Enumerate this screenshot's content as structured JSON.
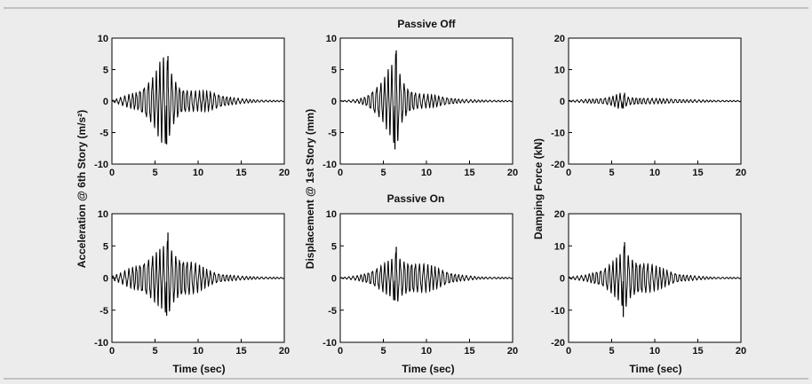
{
  "figure": {
    "titles": [
      "Passive Off",
      "Passive On"
    ],
    "ylabels": [
      "Acceleration @ 6th Story (m/s²)",
      "Displacement @ 1st Story (mm)",
      "Damping Force (kN)"
    ],
    "xlabel": "Time (sec)",
    "colors": {
      "background": "#ececec",
      "axes": "#ffffff",
      "signal": "#000000"
    }
  },
  "chart_data": [
    {
      "type": "line",
      "panel": "Passive Off / acceleration",
      "x_range": [
        0,
        20
      ],
      "ylim": [
        -10,
        10
      ],
      "xticks": [
        0,
        5,
        10,
        15,
        20
      ],
      "yticks": [
        -10,
        -5,
        0,
        5,
        10
      ],
      "envelope": [
        [
          0,
          0.1
        ],
        [
          1,
          0.6
        ],
        [
          2,
          1.1
        ],
        [
          3,
          1.6
        ],
        [
          4,
          3
        ],
        [
          5,
          4.5
        ],
        [
          5.5,
          6.2
        ],
        [
          6,
          7
        ],
        [
          6.5,
          6.5
        ],
        [
          7,
          4.3
        ],
        [
          8,
          2.2
        ],
        [
          9,
          1.8
        ],
        [
          10,
          1.6
        ],
        [
          11,
          1.7
        ],
        [
          12,
          1.4
        ],
        [
          13,
          0.9
        ],
        [
          14,
          0.6
        ],
        [
          15,
          0.4
        ],
        [
          17,
          0.2
        ],
        [
          20,
          0.1
        ]
      ],
      "peak": [
        7.1,
        -6.8
      ]
    },
    {
      "type": "line",
      "panel": "Passive Off / displacement",
      "x_range": [
        0,
        20
      ],
      "ylim": [
        -10,
        10
      ],
      "xticks": [
        0,
        5,
        10,
        15,
        20
      ],
      "yticks": [
        -10,
        -5,
        0,
        5,
        10
      ],
      "envelope": [
        [
          0,
          0.05
        ],
        [
          2,
          0.3
        ],
        [
          3,
          0.8
        ],
        [
          4,
          2.2
        ],
        [
          5,
          3.5
        ],
        [
          5.5,
          5
        ],
        [
          6,
          5.8
        ],
        [
          6.5,
          8
        ],
        [
          7,
          4
        ],
        [
          8,
          2
        ],
        [
          9,
          1.3
        ],
        [
          10,
          1.1
        ],
        [
          11,
          1
        ],
        [
          12,
          0.7
        ],
        [
          13,
          0.5
        ],
        [
          14,
          0.3
        ],
        [
          16,
          0.2
        ],
        [
          20,
          0.1
        ]
      ],
      "peak": [
        8,
        -7.6
      ]
    },
    {
      "type": "line",
      "panel": "Passive Off / damping force",
      "x_range": [
        0,
        20
      ],
      "ylim": [
        -20,
        20
      ],
      "xticks": [
        0,
        5,
        10,
        15,
        20
      ],
      "yticks": [
        -20,
        -10,
        0,
        10,
        20
      ],
      "envelope": [
        [
          0,
          0.2
        ],
        [
          2,
          0.6
        ],
        [
          4,
          1
        ],
        [
          5,
          1.5
        ],
        [
          6,
          2.5
        ],
        [
          6.5,
          1.8
        ],
        [
          7,
          1.3
        ],
        [
          9,
          1
        ],
        [
          11,
          0.8
        ],
        [
          14,
          0.5
        ],
        [
          17,
          0.3
        ],
        [
          20,
          0.2
        ]
      ],
      "peak": [
        2.5,
        -2.2
      ]
    },
    {
      "type": "line",
      "panel": "Passive On / acceleration",
      "x_range": [
        0,
        20
      ],
      "ylim": [
        -10,
        10
      ],
      "xticks": [
        0,
        5,
        10,
        15,
        20
      ],
      "yticks": [
        -10,
        -5,
        0,
        5,
        10
      ],
      "envelope": [
        [
          0,
          0.3
        ],
        [
          1,
          0.8
        ],
        [
          2,
          1.5
        ],
        [
          3,
          2.2
        ],
        [
          4,
          3
        ],
        [
          5,
          4
        ],
        [
          6,
          5
        ],
        [
          6.5,
          6
        ],
        [
          7,
          4.3
        ],
        [
          8,
          3.2
        ],
        [
          9,
          2.8
        ],
        [
          10,
          2.2
        ],
        [
          11,
          1.4
        ],
        [
          12,
          0.9
        ],
        [
          13,
          0.6
        ],
        [
          15,
          0.3
        ],
        [
          17,
          0.2
        ],
        [
          20,
          0.1
        ]
      ],
      "peak": [
        7,
        -5.8
      ]
    },
    {
      "type": "line",
      "panel": "Passive On / displacement",
      "x_range": [
        0,
        20
      ],
      "ylim": [
        -10,
        10
      ],
      "xticks": [
        0,
        5,
        10,
        15,
        20
      ],
      "yticks": [
        -10,
        -5,
        0,
        5,
        10
      ],
      "envelope": [
        [
          0,
          0.05
        ],
        [
          2,
          0.4
        ],
        [
          3,
          0.8
        ],
        [
          4,
          1.5
        ],
        [
          5,
          2.3
        ],
        [
          6,
          3
        ],
        [
          6.5,
          4.2
        ],
        [
          7,
          3
        ],
        [
          8,
          2.7
        ],
        [
          9,
          2.4
        ],
        [
          10,
          2.2
        ],
        [
          11,
          1.8
        ],
        [
          12,
          1.3
        ],
        [
          13,
          0.8
        ],
        [
          14,
          0.5
        ],
        [
          16,
          0.2
        ],
        [
          20,
          0.1
        ]
      ],
      "peak": [
        4.8,
        -3.4
      ]
    },
    {
      "type": "line",
      "panel": "Passive On / damping force",
      "x_range": [
        0,
        20
      ],
      "ylim": [
        -20,
        20
      ],
      "xticks": [
        0,
        5,
        10,
        15,
        20
      ],
      "yticks": [
        -20,
        -10,
        0,
        10,
        20
      ],
      "envelope": [
        [
          0,
          0.3
        ],
        [
          2,
          1
        ],
        [
          3,
          2
        ],
        [
          4,
          3
        ],
        [
          5,
          5
        ],
        [
          6,
          7.5
        ],
        [
          6.5,
          10.5
        ],
        [
          7,
          7
        ],
        [
          8,
          5.5
        ],
        [
          9,
          5
        ],
        [
          10,
          4
        ],
        [
          11,
          3
        ],
        [
          12,
          2
        ],
        [
          13,
          1.2
        ],
        [
          15,
          0.6
        ],
        [
          17,
          0.3
        ],
        [
          20,
          0.2
        ]
      ],
      "peak": [
        11,
        -12
      ]
    }
  ]
}
